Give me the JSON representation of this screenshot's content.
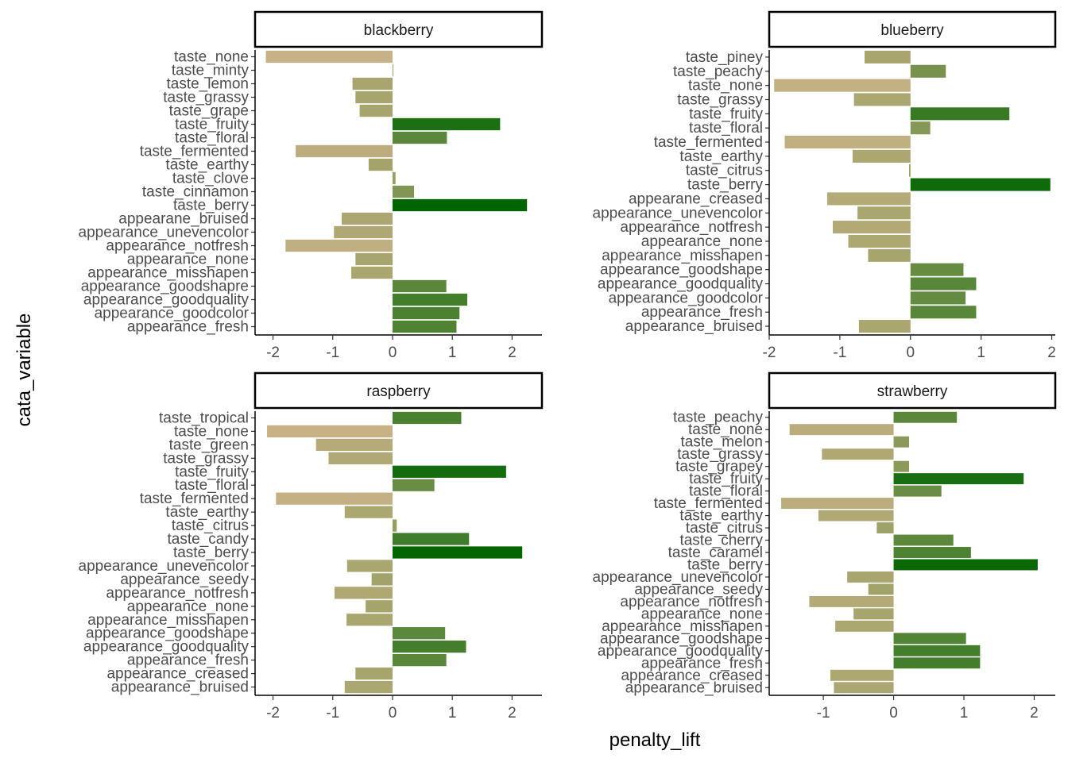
{
  "chart_data": {
    "type": "bar",
    "orientation": "horizontal",
    "facet_layout": "2x2",
    "xlabel": "penalty_lift",
    "ylabel": "cata_variable",
    "grid": false,
    "legend": "none",
    "colors": {
      "low": "#c9b287",
      "high": "#006400",
      "mid": "#9aa064"
    },
    "facets": [
      {
        "name": "blackberry",
        "xlim": [
          -2.3,
          2.5
        ],
        "xticks": [
          -2,
          -1,
          0,
          1,
          2
        ],
        "categories": [
          "taste_none",
          "taste_minty",
          "taste_lemon",
          "taste_grassy",
          "taste_grape",
          "taste_fruity",
          "taste_floral",
          "taste_fermented",
          "taste_earthy",
          "taste_clove",
          "taste_cinnamon",
          "taste_berry",
          "appearane_bruised",
          "appearance_unevencolor",
          "appearance_notfresh",
          "appearance_none",
          "appearance_misshapen",
          "appearance_goodshapre",
          "appearance_goodquality",
          "appearance_goodcolor",
          "appearance_fresh"
        ],
        "values": [
          -2.12,
          0.01,
          -0.67,
          -0.62,
          -0.55,
          1.8,
          0.91,
          -1.62,
          -0.4,
          0.05,
          0.36,
          2.25,
          -0.85,
          -0.98,
          -1.79,
          -0.62,
          -0.69,
          0.9,
          1.25,
          1.12,
          1.07
        ]
      },
      {
        "name": "blueberry",
        "xlim": [
          -2.0,
          2.05
        ],
        "xticks": [
          -2,
          -1,
          0,
          1,
          2
        ],
        "categories": [
          "taste_piney",
          "taste_peachy",
          "taste_none",
          "taste_grassy",
          "taste_fruity",
          "taste_floral",
          "taste_fermented",
          "taste_earthy",
          "taste_citrus",
          "taste_berry",
          "appearane_creased",
          "appearance_unevencolor",
          "appearance_notfresh",
          "appearance_none",
          "appearance_misshapen",
          "appearance_goodshape",
          "appearance_goodquality",
          "appearance_goodcolor",
          "appearance_fresh",
          "appearance_bruised"
        ],
        "values": [
          -0.65,
          0.5,
          -1.93,
          -0.8,
          1.4,
          0.28,
          -1.78,
          -0.82,
          -0.02,
          1.98,
          -1.18,
          -0.75,
          -1.1,
          -0.88,
          -0.6,
          0.75,
          0.93,
          0.78,
          0.93,
          -0.73
        ]
      },
      {
        "name": "raspberry",
        "xlim": [
          -2.3,
          2.5
        ],
        "xticks": [
          -2,
          -1,
          0,
          1,
          2
        ],
        "categories": [
          "taste_tropical",
          "taste_none",
          "taste_green",
          "taste_grassy",
          "taste_fruity",
          "taste_floral",
          "taste_fermented",
          "taste_earthy",
          "taste_citrus",
          "taste_candy",
          "taste_berry",
          "appearance_unevencolor",
          "appearance_seedy",
          "appearance_notfresh",
          "appearance_none",
          "appearance_misshapen",
          "appearance_goodshape",
          "appearance_goodquality",
          "appearance_fresh",
          "appearance_creased",
          "appearance_bruised"
        ],
        "values": [
          1.15,
          -2.1,
          -1.28,
          -1.07,
          1.9,
          0.7,
          -1.95,
          -0.8,
          0.07,
          1.28,
          2.17,
          -0.76,
          -0.35,
          -0.97,
          -0.45,
          -0.77,
          0.88,
          1.23,
          0.9,
          -0.62,
          -0.8
        ]
      },
      {
        "name": "strawberry",
        "xlim": [
          -1.77,
          2.3
        ],
        "xticks": [
          -1,
          0,
          1,
          2
        ],
        "categories": [
          "taste_peachy",
          "taste_none",
          "taste_melon",
          "taste_grassy",
          "taste_grapey",
          "taste_fruity",
          "taste_floral",
          "taste_fermented",
          "taste_earthy",
          "taste_citrus",
          "taste_cherry",
          "taste_caramel",
          "taste_berry",
          "appearance_unevencolor",
          "appearance_seedy",
          "appearance_notfresh",
          "appearance_none",
          "appearance_misshapen",
          "appearance_goodshape",
          "appearance_goodquality",
          "appearance_fresh",
          "appearance_creased",
          "appearance_bruised"
        ],
        "values": [
          0.9,
          -1.48,
          0.22,
          -1.02,
          0.22,
          1.85,
          0.68,
          -1.6,
          -1.07,
          -0.24,
          0.85,
          1.1,
          2.05,
          -0.66,
          -0.36,
          -1.2,
          -0.57,
          -0.83,
          1.03,
          1.23,
          1.23,
          -0.9,
          -0.85
        ]
      }
    ]
  }
}
